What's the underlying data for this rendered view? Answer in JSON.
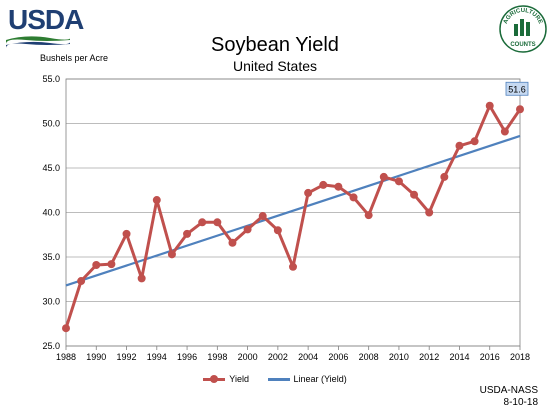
{
  "header": {
    "logo_text": "USDA",
    "seal_text": "AGRICULTURE COUNTS"
  },
  "chart_data": {
    "type": "line",
    "title": "Soybean Yield",
    "subtitle": "United States",
    "ylabel": "Bushels per Acre",
    "xlabel": "",
    "ylim": [
      25,
      55
    ],
    "xlim": [
      1988,
      2018
    ],
    "y_ticks": [
      "25.0",
      "30.0",
      "35.0",
      "40.0",
      "45.0",
      "50.0",
      "55.0"
    ],
    "x_ticks": [
      "1988",
      "1990",
      "1992",
      "1994",
      "1996",
      "1998",
      "2000",
      "2002",
      "2004",
      "2006",
      "2008",
      "2010",
      "2012",
      "2014",
      "2016",
      "2018"
    ],
    "grid": "horizontal",
    "legend_position": "bottom",
    "series": [
      {
        "name": "Yield",
        "color": "#c0504d",
        "x": [
          1988,
          1989,
          1990,
          1991,
          1992,
          1993,
          1994,
          1995,
          1996,
          1997,
          1998,
          1999,
          2000,
          2001,
          2002,
          2003,
          2004,
          2005,
          2006,
          2007,
          2008,
          2009,
          2010,
          2011,
          2012,
          2013,
          2014,
          2015,
          2016,
          2017,
          2018
        ],
        "y": [
          27.0,
          32.3,
          34.1,
          34.2,
          37.6,
          32.6,
          41.4,
          35.3,
          37.6,
          38.9,
          38.9,
          36.6,
          38.1,
          39.6,
          38.0,
          33.9,
          42.2,
          43.1,
          42.9,
          41.7,
          39.7,
          44.0,
          43.5,
          42.0,
          40.0,
          44.0,
          47.5,
          48.0,
          52.0,
          49.1,
          51.6
        ]
      },
      {
        "name": "Linear (Yield)",
        "color": "#4f81bd",
        "x": [
          1988,
          2018
        ],
        "y": [
          31.8,
          48.6
        ]
      }
    ],
    "annotation": "51.6"
  },
  "footer": {
    "source_line1": "USDA-NASS",
    "source_line2": "8-10-18"
  }
}
